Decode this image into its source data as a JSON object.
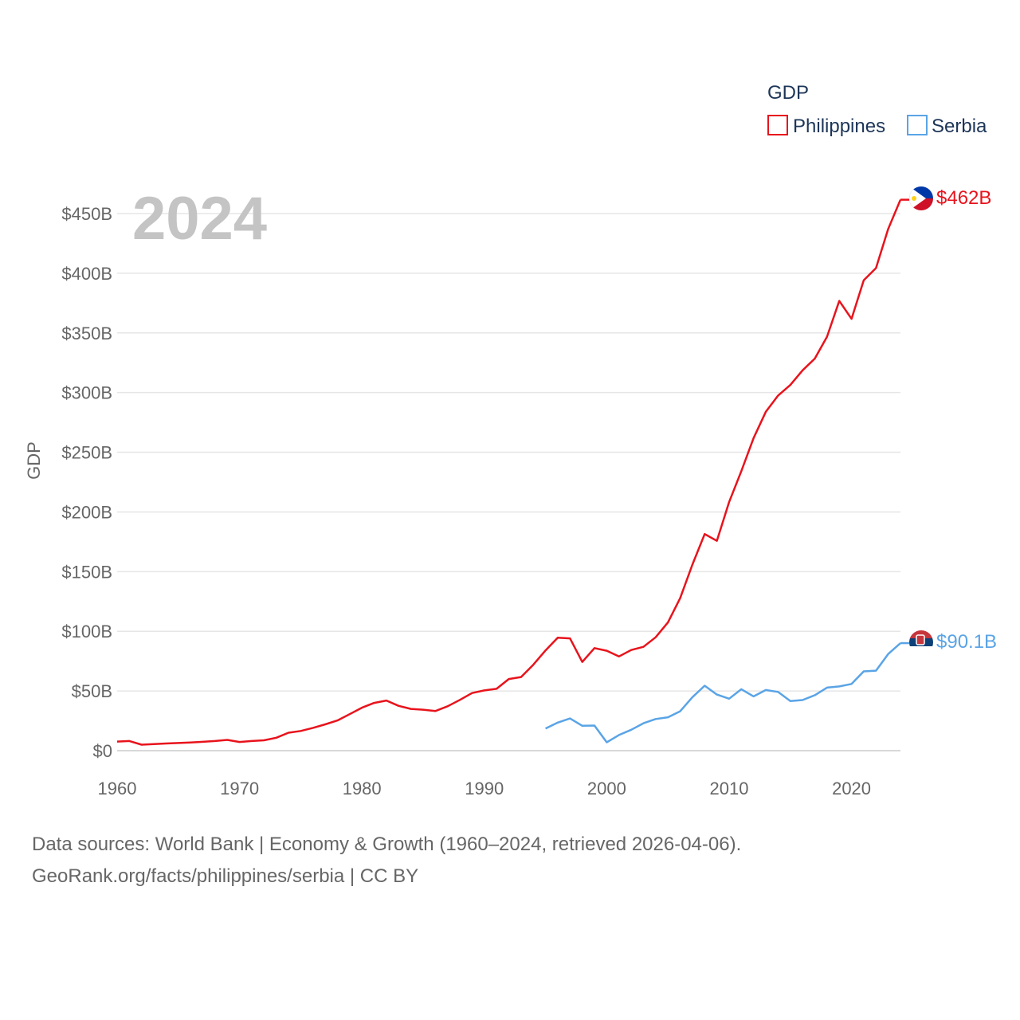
{
  "chart_data": {
    "type": "line",
    "year_label": "2024",
    "ylabel": "GDP",
    "xlim": [
      1960,
      2024
    ],
    "ylim": [
      0,
      450
    ],
    "y_ticks": [
      {
        "value": 0,
        "label": "$0"
      },
      {
        "value": 50,
        "label": "$50B"
      },
      {
        "value": 100,
        "label": "$100B"
      },
      {
        "value": 150,
        "label": "$150B"
      },
      {
        "value": 200,
        "label": "$200B"
      },
      {
        "value": 250,
        "label": "$250B"
      },
      {
        "value": 300,
        "label": "$300B"
      },
      {
        "value": 350,
        "label": "$350B"
      },
      {
        "value": 400,
        "label": "$400B"
      },
      {
        "value": 450,
        "label": "$450B"
      }
    ],
    "x_ticks": [
      {
        "value": 1960,
        "label": "1960"
      },
      {
        "value": 1970,
        "label": "1970"
      },
      {
        "value": 1980,
        "label": "1980"
      },
      {
        "value": 1990,
        "label": "1990"
      },
      {
        "value": 2000,
        "label": "2000"
      },
      {
        "value": 2010,
        "label": "2010"
      },
      {
        "value": 2020,
        "label": "2020"
      }
    ],
    "legend": {
      "title": "GDP",
      "position": "top-right"
    },
    "series": [
      {
        "name": "Philippines",
        "color": "#e8131c",
        "end_label": "$462B",
        "flag": "philippines-flag-icon",
        "points": [
          [
            1960,
            7.6
          ],
          [
            1961,
            8.1
          ],
          [
            1962,
            5.0
          ],
          [
            1963,
            5.5
          ],
          [
            1964,
            6.0
          ],
          [
            1965,
            6.4
          ],
          [
            1966,
            6.9
          ],
          [
            1967,
            7.4
          ],
          [
            1968,
            8.1
          ],
          [
            1969,
            9.0
          ],
          [
            1970,
            7.3
          ],
          [
            1971,
            8.1
          ],
          [
            1972,
            8.7
          ],
          [
            1973,
            10.8
          ],
          [
            1974,
            15.0
          ],
          [
            1975,
            16.5
          ],
          [
            1976,
            19.1
          ],
          [
            1977,
            22.0
          ],
          [
            1978,
            25.3
          ],
          [
            1979,
            30.6
          ],
          [
            1980,
            36.0
          ],
          [
            1981,
            40.0
          ],
          [
            1982,
            42.0
          ],
          [
            1983,
            37.5
          ],
          [
            1984,
            35.0
          ],
          [
            1985,
            34.3
          ],
          [
            1986,
            33.2
          ],
          [
            1987,
            37.2
          ],
          [
            1988,
            42.5
          ],
          [
            1989,
            48.3
          ],
          [
            1990,
            50.5
          ],
          [
            1991,
            51.8
          ],
          [
            1992,
            60.0
          ],
          [
            1993,
            61.7
          ],
          [
            1994,
            72.0
          ],
          [
            1995,
            84.0
          ],
          [
            1996,
            94.6
          ],
          [
            1997,
            94.1
          ],
          [
            1998,
            74.3
          ],
          [
            1999,
            85.9
          ],
          [
            2000,
            83.7
          ],
          [
            2001,
            78.9
          ],
          [
            2002,
            84.3
          ],
          [
            2003,
            87.0
          ],
          [
            2004,
            95.0
          ],
          [
            2005,
            107.4
          ],
          [
            2006,
            127.7
          ],
          [
            2007,
            155.9
          ],
          [
            2008,
            181.5
          ],
          [
            2009,
            175.8
          ],
          [
            2010,
            208.4
          ],
          [
            2011,
            234.2
          ],
          [
            2012,
            261.9
          ],
          [
            2013,
            283.9
          ],
          [
            2014,
            297.5
          ],
          [
            2015,
            306.4
          ],
          [
            2016,
            318.6
          ],
          [
            2017,
            328.5
          ],
          [
            2018,
            346.8
          ],
          [
            2019,
            376.8
          ],
          [
            2020,
            361.8
          ],
          [
            2021,
            394.1
          ],
          [
            2022,
            404.3
          ],
          [
            2023,
            437.1
          ],
          [
            2024,
            461.6
          ]
        ]
      },
      {
        "name": "Serbia",
        "color": "#5aa4e6",
        "end_label": "$90.1B",
        "flag": "serbia-flag-icon",
        "points": [
          [
            1995,
            18.5
          ],
          [
            1996,
            23.5
          ],
          [
            1997,
            27.0
          ],
          [
            1998,
            20.8
          ],
          [
            1999,
            21.0
          ],
          [
            2000,
            7.0
          ],
          [
            2001,
            13.1
          ],
          [
            2002,
            17.5
          ],
          [
            2003,
            23.0
          ],
          [
            2004,
            26.5
          ],
          [
            2005,
            28.0
          ],
          [
            2006,
            33.0
          ],
          [
            2007,
            44.8
          ],
          [
            2008,
            54.4
          ],
          [
            2009,
            47.0
          ],
          [
            2010,
            43.5
          ],
          [
            2011,
            51.5
          ],
          [
            2012,
            45.5
          ],
          [
            2013,
            50.8
          ],
          [
            2014,
            49.2
          ],
          [
            2015,
            41.5
          ],
          [
            2016,
            42.4
          ],
          [
            2017,
            46.5
          ],
          [
            2018,
            52.8
          ],
          [
            2019,
            53.8
          ],
          [
            2020,
            55.9
          ],
          [
            2021,
            66.4
          ],
          [
            2022,
            67.0
          ],
          [
            2023,
            81.0
          ],
          [
            2024,
            90.1
          ]
        ]
      }
    ]
  },
  "footer": {
    "line1": "Data sources: World Bank | Economy & Growth (1960–2024, retrieved 2026-04-06).",
    "line2": "GeoRank.org/facts/philippines/serbia | CC BY"
  }
}
